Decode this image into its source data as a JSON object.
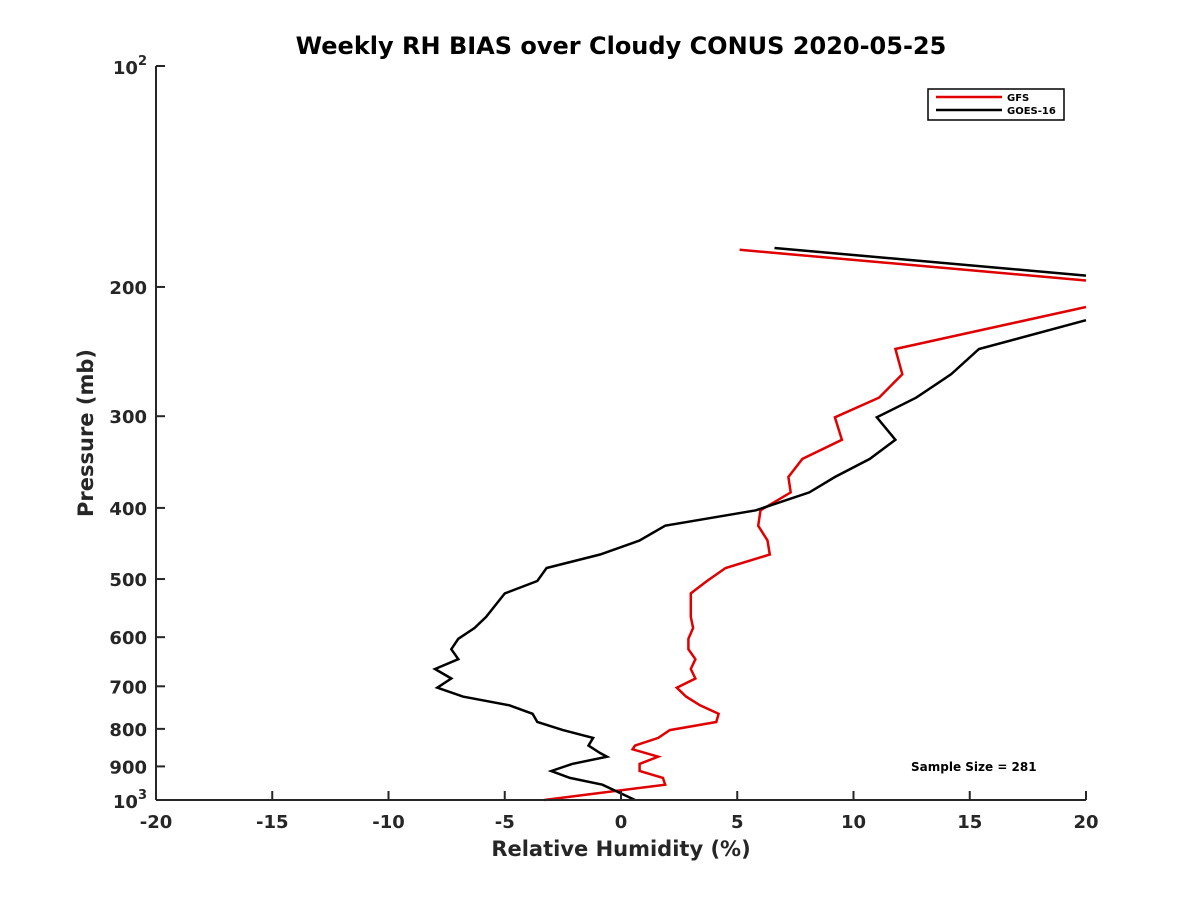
{
  "chart_data": {
    "type": "line",
    "title": "Weekly RH BIAS over Cloudy CONUS 2020-05-25",
    "xlabel": "Relative Humidity (%)",
    "ylabel": "Pressure (mb)",
    "xlim": [
      -20,
      20
    ],
    "ylim": [
      100,
      1000
    ],
    "yscale": "log",
    "y_reversed": true,
    "x_ticks": [
      "-20",
      "-15",
      "-10",
      "-5",
      "0",
      "5",
      "10",
      "15",
      "20"
    ],
    "y_ticks": [
      {
        "value": 200,
        "label": "200"
      },
      {
        "value": 300,
        "label": "300"
      },
      {
        "value": 400,
        "label": "400"
      },
      {
        "value": 500,
        "label": "500"
      },
      {
        "value": 600,
        "label": "600"
      },
      {
        "value": 700,
        "label": "700"
      },
      {
        "value": 800,
        "label": "800"
      },
      {
        "value": 900,
        "label": "900"
      }
    ],
    "y_end_ticks": {
      "top": {
        "value": 100,
        "base": "10",
        "exp": "2"
      },
      "bottom": {
        "value": 1000,
        "base": "10",
        "exp": "3"
      }
    },
    "grid": false,
    "legend_position": "top-right",
    "annotation": "Sample Size = 281",
    "series": [
      {
        "name": "GFS",
        "color": "#e00000",
        "segments": [
          [
            {
              "x": 5.1,
              "y": 178
            },
            {
              "x": 20,
              "y": 196
            }
          ],
          [
            {
              "x": 20,
              "y": 213
            },
            {
              "x": 11.8,
              "y": 243
            },
            {
              "x": 12.1,
              "y": 263
            },
            {
              "x": 11.1,
              "y": 283
            },
            {
              "x": 9.2,
              "y": 301
            },
            {
              "x": 9.5,
              "y": 323
            },
            {
              "x": 7.8,
              "y": 343
            },
            {
              "x": 7.2,
              "y": 363
            },
            {
              "x": 7.3,
              "y": 381
            },
            {
              "x": 6.0,
              "y": 403
            },
            {
              "x": 5.9,
              "y": 423
            },
            {
              "x": 6.3,
              "y": 443
            },
            {
              "x": 6.4,
              "y": 463
            },
            {
              "x": 4.5,
              "y": 483
            },
            {
              "x": 3.7,
              "y": 503
            },
            {
              "x": 3.0,
              "y": 523
            },
            {
              "x": 3.0,
              "y": 563
            },
            {
              "x": 3.1,
              "y": 583
            },
            {
              "x": 2.9,
              "y": 603
            },
            {
              "x": 2.9,
              "y": 623
            },
            {
              "x": 3.2,
              "y": 643
            },
            {
              "x": 3.0,
              "y": 663
            },
            {
              "x": 3.2,
              "y": 683
            },
            {
              "x": 2.4,
              "y": 703
            },
            {
              "x": 2.8,
              "y": 723
            },
            {
              "x": 3.4,
              "y": 743
            },
            {
              "x": 4.2,
              "y": 763
            },
            {
              "x": 4.1,
              "y": 783
            },
            {
              "x": 2.1,
              "y": 803
            },
            {
              "x": 1.6,
              "y": 823
            },
            {
              "x": 0.6,
              "y": 843
            },
            {
              "x": 0.5,
              "y": 853
            },
            {
              "x": 1.6,
              "y": 873
            },
            {
              "x": 0.8,
              "y": 893
            },
            {
              "x": 0.8,
              "y": 913
            },
            {
              "x": 1.8,
              "y": 933
            },
            {
              "x": 1.9,
              "y": 953
            },
            {
              "x": -3.3,
              "y": 1000
            }
          ]
        ]
      },
      {
        "name": "GOES-16",
        "color": "#000000",
        "segments": [
          [
            {
              "x": 6.6,
              "y": 177
            },
            {
              "x": 20,
              "y": 193
            }
          ],
          [
            {
              "x": 20,
              "y": 222
            },
            {
              "x": 15.4,
              "y": 243
            },
            {
              "x": 14.2,
              "y": 263
            },
            {
              "x": 12.7,
              "y": 283
            },
            {
              "x": 11.0,
              "y": 301
            },
            {
              "x": 11.8,
              "y": 323
            },
            {
              "x": 10.7,
              "y": 343
            },
            {
              "x": 9.2,
              "y": 363
            },
            {
              "x": 8.1,
              "y": 381
            },
            {
              "x": 5.8,
              "y": 403
            },
            {
              "x": 1.9,
              "y": 423
            },
            {
              "x": 0.8,
              "y": 443
            },
            {
              "x": -0.9,
              "y": 463
            },
            {
              "x": -3.2,
              "y": 483
            },
            {
              "x": -3.6,
              "y": 503
            },
            {
              "x": -5.0,
              "y": 523
            },
            {
              "x": -5.8,
              "y": 563
            },
            {
              "x": -6.3,
              "y": 583
            },
            {
              "x": -7.0,
              "y": 603
            },
            {
              "x": -7.3,
              "y": 623
            },
            {
              "x": -7.0,
              "y": 643
            },
            {
              "x": -8.0,
              "y": 663
            },
            {
              "x": -7.3,
              "y": 683
            },
            {
              "x": -7.9,
              "y": 703
            },
            {
              "x": -6.8,
              "y": 723
            },
            {
              "x": -4.8,
              "y": 743
            },
            {
              "x": -3.8,
              "y": 763
            },
            {
              "x": -3.6,
              "y": 783
            },
            {
              "x": -2.5,
              "y": 803
            },
            {
              "x": -1.2,
              "y": 823
            },
            {
              "x": -1.4,
              "y": 843
            },
            {
              "x": -0.9,
              "y": 863
            },
            {
              "x": -0.6,
              "y": 873
            },
            {
              "x": -2.1,
              "y": 893
            },
            {
              "x": -3.0,
              "y": 913
            },
            {
              "x": -2.2,
              "y": 933
            },
            {
              "x": -0.8,
              "y": 953
            },
            {
              "x": 0.1,
              "y": 983
            },
            {
              "x": 0.6,
              "y": 1000
            }
          ]
        ]
      }
    ]
  }
}
